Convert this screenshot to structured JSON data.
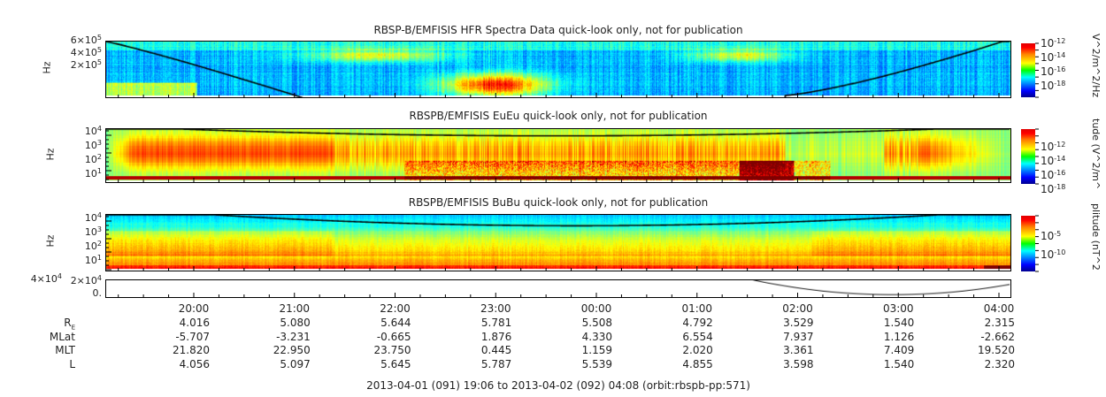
{
  "chart_data": [
    {
      "type": "heatmap",
      "title": "RBSP-B/EMFISIS  HFR Spectra Data quick-look only, not for publication",
      "ylabel": "Hz",
      "yticks": [
        "6×10^5",
        "4×10^5",
        "2×10^5"
      ],
      "colorbar": {
        "label": "V^2/m^2/Hz",
        "ticks": [
          "10^-12",
          "10^-14",
          "10^-16",
          "10^-18"
        ]
      }
    },
    {
      "type": "heatmap",
      "title": "RBSPB/EMFISIS  EuEu quick-look only, not for publication",
      "ylabel": "Hz",
      "yticks": [
        "10^4",
        "10^3",
        "10^2",
        "10^1"
      ],
      "colorbar": {
        "label": "tude (V^2/m^",
        "ticks": [
          "10^-12",
          "10^-14",
          "10^-16",
          "10^-18"
        ]
      }
    },
    {
      "type": "heatmap",
      "title": "RBSPB/EMFISIS  BuBu quick-look only, not for publication",
      "ylabel": "Hz",
      "yticks": [
        "10^4",
        "10^3",
        "10^2",
        "10^1"
      ],
      "colorbar": {
        "label": "plitude (nT^2",
        "ticks": [
          "10^-5",
          "10^-10"
        ]
      }
    },
    {
      "type": "line",
      "yticks": [
        "4×10^4",
        "2×10^4",
        "0."
      ]
    }
  ],
  "xaxis": {
    "ticks": [
      "20:00",
      "21:00",
      "22:00",
      "23:00",
      "00:00",
      "01:00",
      "02:00",
      "03:00",
      "04:00"
    ]
  },
  "ephemeris": {
    "labels": [
      "R",
      "MLat",
      "MLT",
      "L"
    ],
    "re_sub": "E",
    "rows": [
      [
        "4.016",
        "5.080",
        "5.644",
        "5.781",
        "5.508",
        "4.792",
        "3.529",
        "1.540",
        "2.315"
      ],
      [
        "-5.707",
        "-3.231",
        "-0.665",
        "1.876",
        "4.330",
        "6.554",
        "7.937",
        "1.126",
        "-2.662"
      ],
      [
        "21.820",
        "22.950",
        "23.750",
        "0.445",
        "1.159",
        "2.020",
        "3.361",
        "7.409",
        "19.520"
      ],
      [
        "4.056",
        "5.097",
        "5.645",
        "5.787",
        "5.539",
        "4.855",
        "3.598",
        "1.540",
        "2.320"
      ]
    ]
  },
  "footer": "2013-04-01 (091) 19:06 to 2013-04-02 (092) 04:08 (orbit:rbspb-pp:571)"
}
